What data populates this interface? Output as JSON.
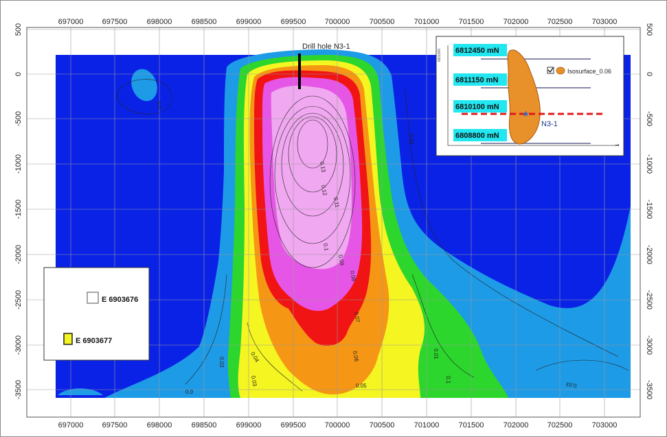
{
  "map": {
    "x_ticks": [
      "697000",
      "697500",
      "698000",
      "698500",
      "699000",
      "699500",
      "700000",
      "700500",
      "701000",
      "701500",
      "702000",
      "702500",
      "703000"
    ],
    "y_ticks": [
      "500",
      "0",
      "-500",
      "-1000",
      "-1500",
      "-2000",
      "-2500",
      "-3000",
      "-3500"
    ],
    "drill_hole_label": "Drill hole N3-1",
    "colors": {
      "c0": "#0a22e6",
      "c1": "#1e9be6",
      "c2": "#2cd62c",
      "c3": "#f5f522",
      "c4": "#f59614",
      "c5": "#f01414",
      "c6": "#e656e6",
      "c7": "#f0a8f0"
    },
    "contour_labels": [
      "0.13",
      "0.12",
      "0.11",
      "0.1",
      "0.09",
      "0.08",
      "0.07",
      "0.06",
      "0.05",
      "0.04",
      "0.03",
      "0.02",
      "0.01",
      "0.1",
      "0.0",
      "0.0",
      "0.03",
      "0.03"
    ]
  },
  "legend": {
    "items": [
      {
        "label": "E 6903676",
        "color": "#ffffff"
      },
      {
        "label": "E 6903677",
        "color": "#f5f522"
      }
    ]
  },
  "inset": {
    "north_labels": [
      "6812450 mN",
      "6811150 mN",
      "6810100 mN",
      "6808800 mN"
    ],
    "isosurface_label": "Isosurface_0.06",
    "hole_label": "N3-1",
    "axis_label": "6811000",
    "colors": {
      "body": "#e8902a",
      "label_bg": "#22e6f0",
      "section_line": "#e01818"
    }
  }
}
